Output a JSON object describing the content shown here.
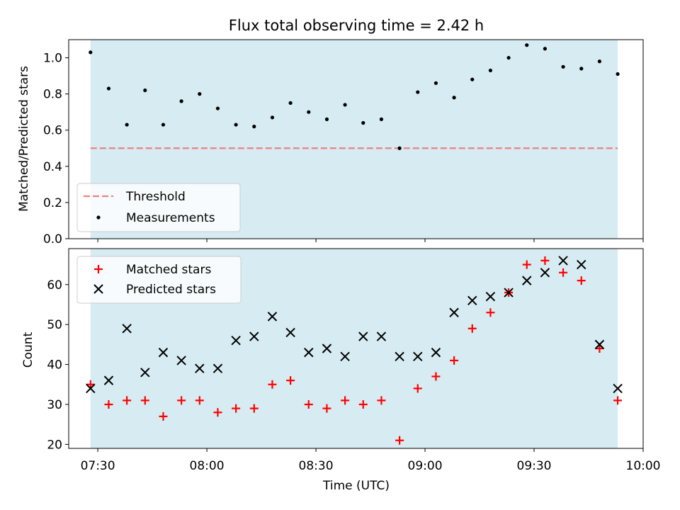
{
  "chart_data": [
    {
      "type": "scatter",
      "title": "Flux total observing time = 2.42 h",
      "ylabel": "Matched/Predicted stars",
      "ylim": [
        0,
        1.1
      ],
      "yticks": [
        "0.0",
        "0.2",
        "0.4",
        "0.6",
        "0.8",
        "1.0"
      ],
      "xlim": [
        "07:22",
        "10:00"
      ],
      "shaded_span": [
        "07:28",
        "09:53"
      ],
      "shade_color": "#add8e6",
      "threshold": {
        "name": "Threshold",
        "value": 0.5,
        "color": "#f08080"
      },
      "series": [
        {
          "name": "Measurements",
          "color": "#000000",
          "x": [
            "07:28",
            "07:33",
            "07:38",
            "07:43",
            "07:48",
            "07:53",
            "07:58",
            "08:03",
            "08:08",
            "08:13",
            "08:18",
            "08:23",
            "08:28",
            "08:33",
            "08:38",
            "08:43",
            "08:48",
            "08:53",
            "08:58",
            "09:03",
            "09:08",
            "09:13",
            "09:18",
            "09:23",
            "09:28",
            "09:33",
            "09:38",
            "09:43",
            "09:48",
            "09:53"
          ],
          "y": [
            1.03,
            0.83,
            0.63,
            0.82,
            0.63,
            0.76,
            0.8,
            0.72,
            0.63,
            0.62,
            0.67,
            0.75,
            0.7,
            0.66,
            0.74,
            0.64,
            0.66,
            0.5,
            0.81,
            0.86,
            0.78,
            0.88,
            0.93,
            1.0,
            1.07,
            1.05,
            0.95,
            0.94,
            0.98,
            0.91
          ]
        }
      ],
      "legend": "lower-left"
    },
    {
      "type": "scatter",
      "xlabel": "Time (UTC)",
      "ylabel": "Count",
      "ylim": [
        19,
        69
      ],
      "yticks": [
        "20",
        "30",
        "40",
        "50",
        "60"
      ],
      "xticks": [
        "07:30",
        "08:00",
        "08:30",
        "09:00",
        "09:30",
        "10:00"
      ],
      "xlim": [
        "07:22",
        "10:00"
      ],
      "shaded_span": [
        "07:28",
        "09:53"
      ],
      "shade_color": "#add8e6",
      "series": [
        {
          "name": "Matched stars",
          "marker": "+",
          "color": "#ff0000",
          "x": [
            "07:28",
            "07:33",
            "07:38",
            "07:43",
            "07:48",
            "07:53",
            "07:58",
            "08:03",
            "08:08",
            "08:13",
            "08:18",
            "08:23",
            "08:28",
            "08:33",
            "08:38",
            "08:43",
            "08:48",
            "08:53",
            "08:58",
            "09:03",
            "09:08",
            "09:13",
            "09:18",
            "09:23",
            "09:28",
            "09:33",
            "09:38",
            "09:43",
            "09:48",
            "09:53"
          ],
          "y": [
            35,
            30,
            31,
            31,
            27,
            31,
            31,
            28,
            29,
            29,
            35,
            36,
            30,
            29,
            31,
            30,
            31,
            21,
            34,
            37,
            41,
            49,
            53,
            58,
            65,
            66,
            63,
            61,
            44,
            31
          ]
        },
        {
          "name": "Predicted stars",
          "marker": "x",
          "color": "#000000",
          "x": [
            "07:28",
            "07:33",
            "07:38",
            "07:43",
            "07:48",
            "07:53",
            "07:58",
            "08:03",
            "08:08",
            "08:13",
            "08:18",
            "08:23",
            "08:28",
            "08:33",
            "08:38",
            "08:43",
            "08:48",
            "08:53",
            "08:58",
            "09:03",
            "09:08",
            "09:13",
            "09:18",
            "09:23",
            "09:28",
            "09:33",
            "09:38",
            "09:43",
            "09:48",
            "09:53"
          ],
          "y": [
            34,
            36,
            49,
            38,
            43,
            41,
            39,
            39,
            46,
            47,
            52,
            48,
            43,
            44,
            42,
            47,
            47,
            42,
            42,
            43,
            53,
            56,
            57,
            58,
            61,
            63,
            66,
            65,
            45,
            34
          ]
        }
      ],
      "legend": "upper-left"
    }
  ]
}
